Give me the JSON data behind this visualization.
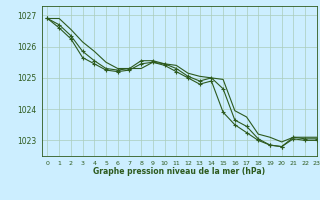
{
  "title": "Graphe pression niveau de la mer (hPa)",
  "bg_color": "#cceeff",
  "grid_color": "#aaccbb",
  "line_color": "#2d5a1e",
  "xlim": [
    -0.5,
    23
  ],
  "ylim": [
    1022.5,
    1027.3
  ],
  "yticks": [
    1023,
    1024,
    1025,
    1026,
    1027
  ],
  "xticks": [
    0,
    1,
    2,
    3,
    4,
    5,
    6,
    7,
    8,
    9,
    10,
    11,
    12,
    13,
    14,
    15,
    16,
    17,
    18,
    19,
    20,
    21,
    22,
    23
  ],
  "series": [
    {
      "x": [
        0,
        1,
        2,
        3,
        4,
        5,
        6,
        7,
        8,
        9,
        10,
        11,
        12,
        13,
        14,
        15,
        16,
        17,
        18,
        19,
        20,
        21,
        22,
        23
      ],
      "y": [
        1026.9,
        1026.9,
        1026.55,
        1026.15,
        1025.85,
        1025.5,
        1025.3,
        1025.3,
        1025.3,
        1025.5,
        1025.45,
        1025.4,
        1025.15,
        1025.05,
        1025.0,
        1024.95,
        1023.95,
        1023.75,
        1023.2,
        1023.1,
        1022.95,
        1023.1,
        1023.1,
        1023.1
      ],
      "has_markers": false
    },
    {
      "x": [
        0,
        1,
        2,
        3,
        4,
        5,
        6,
        7,
        8,
        9,
        10,
        11,
        12,
        13,
        14,
        15,
        16,
        17,
        18,
        19,
        20,
        21,
        22,
        23
      ],
      "y": [
        1026.9,
        1026.7,
        1026.35,
        1025.85,
        1025.55,
        1025.3,
        1025.25,
        1025.3,
        1025.55,
        1025.55,
        1025.45,
        1025.3,
        1025.05,
        1024.9,
        1025.0,
        1024.65,
        1023.65,
        1023.45,
        1023.05,
        1022.85,
        1022.8,
        1023.1,
        1023.05,
        1023.05
      ],
      "has_markers": true
    },
    {
      "x": [
        0,
        1,
        2,
        3,
        4,
        5,
        6,
        7,
        8,
        9,
        10,
        11,
        12,
        13,
        14,
        15,
        16,
        17,
        18,
        19,
        20,
        21,
        22,
        23
      ],
      "y": [
        1026.9,
        1026.6,
        1026.25,
        1025.65,
        1025.45,
        1025.25,
        1025.2,
        1025.25,
        1025.45,
        1025.5,
        1025.4,
        1025.2,
        1025.0,
        1024.8,
        1024.9,
        1023.9,
        1023.5,
        1023.25,
        1023.0,
        1022.85,
        1022.8,
        1023.05,
        1023.0,
        1023.0
      ],
      "has_markers": true
    }
  ]
}
